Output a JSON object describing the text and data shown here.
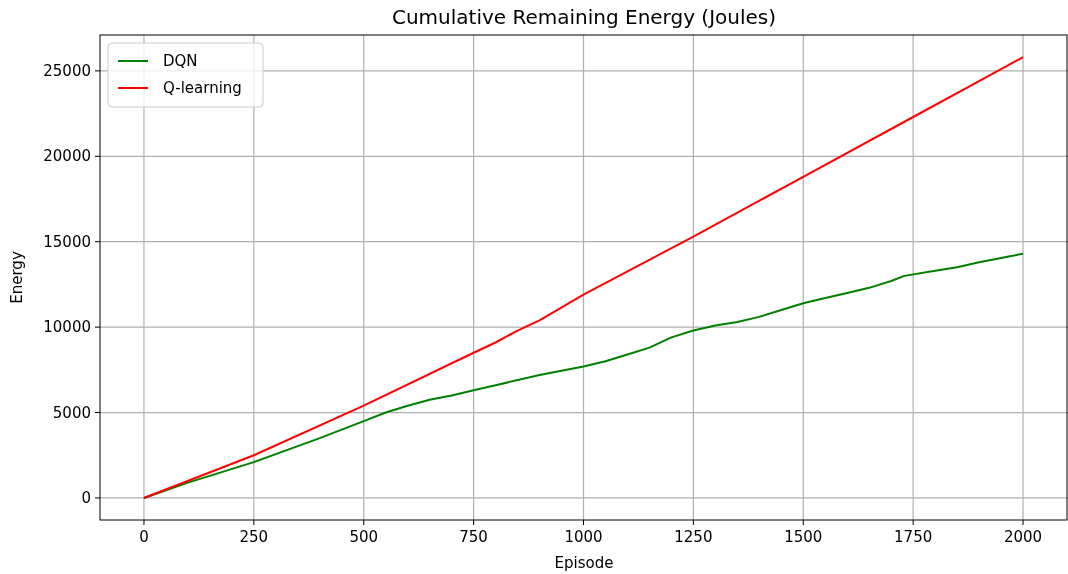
{
  "chart_data": {
    "type": "line",
    "title": "Cumulative Remaining Energy (Joules)",
    "xlabel": "Episode",
    "ylabel": "Energy",
    "xlim": [
      -100,
      2100
    ],
    "xticks": [
      0,
      250,
      500,
      750,
      1000,
      1250,
      1500,
      1750,
      2000
    ],
    "ylim": [
      -1290,
      27100
    ],
    "yticks": [
      0,
      5000,
      10000,
      15000,
      20000,
      25000
    ],
    "grid": true,
    "legend": "top left",
    "series": [
      {
        "name": "DQN",
        "color": "#008000",
        "x": [
          0,
          100,
          250,
          400,
          500,
          550,
          600,
          650,
          700,
          750,
          800,
          900,
          1000,
          1050,
          1100,
          1150,
          1200,
          1250,
          1300,
          1350,
          1400,
          1450,
          1500,
          1550,
          1600,
          1650,
          1700,
          1730,
          1800,
          1850,
          1900,
          1950,
          2000
        ],
        "values": [
          0,
          900,
          2100,
          3500,
          4500,
          5000,
          5400,
          5750,
          6000,
          6300,
          6600,
          7200,
          7700,
          8000,
          8400,
          8800,
          9400,
          9800,
          10100,
          10300,
          10600,
          11000,
          11400,
          11700,
          12000,
          12300,
          12700,
          13000,
          13300,
          13500,
          13800,
          14050,
          14300
        ]
      },
      {
        "name": "Q-learning",
        "color": "#ff0000",
        "x": [
          0,
          250,
          500,
          750,
          800,
          850,
          900,
          1000,
          1250,
          1500,
          1750,
          1900,
          2000
        ],
        "values": [
          0,
          2500,
          5400,
          8500,
          9100,
          9800,
          10400,
          11900,
          15300,
          18800,
          22300,
          24400,
          25800
        ]
      }
    ]
  }
}
